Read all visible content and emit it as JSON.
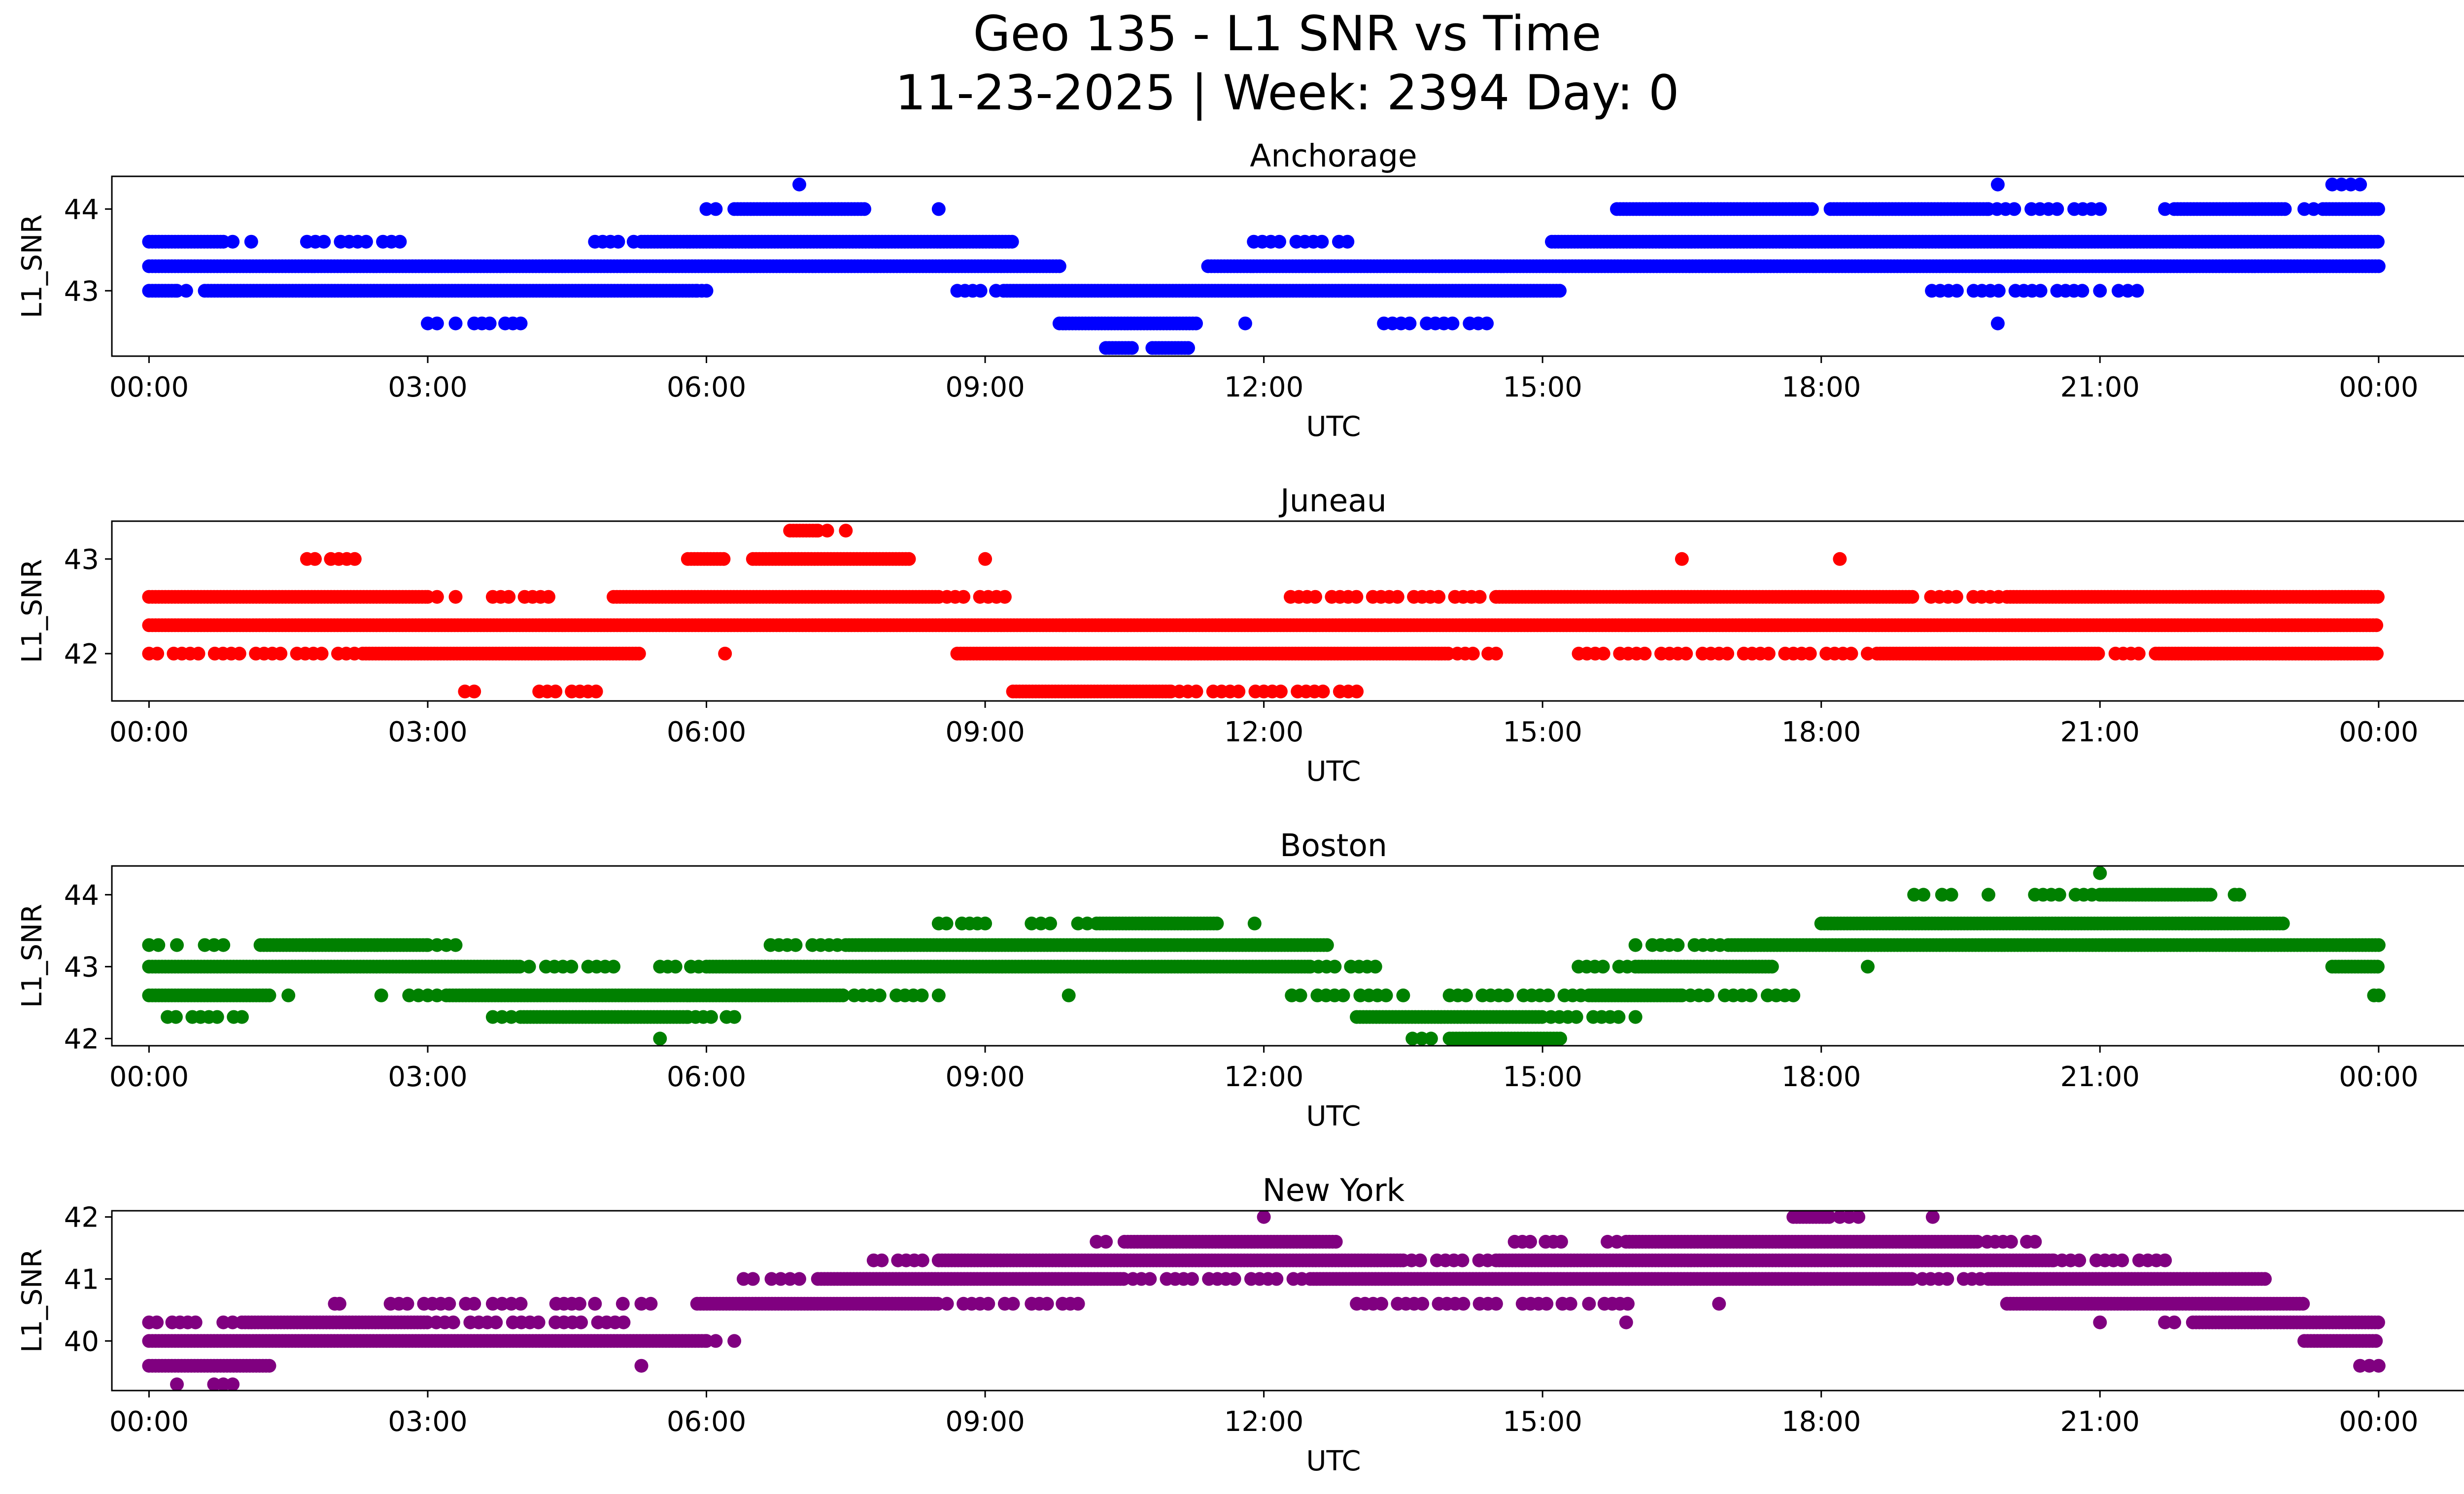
{
  "figure": {
    "title_line1": "Geo 135 - L1 SNR vs Time",
    "title_line2": "11-23-2025 | Week: 2394 Day: 0"
  },
  "chart_data": [
    {
      "type": "scatter",
      "title": "Anchorage",
      "xlabel": "UTC",
      "ylabel": "L1_SNR",
      "color": "#0000ff",
      "xlim_hours": [
        -0.4,
        25.9
      ],
      "ylim": [
        42.2,
        44.4
      ],
      "yticks": [
        43,
        44
      ],
      "xtick_labels": [
        "00:00",
        "03:00",
        "06:00",
        "09:00",
        "12:00",
        "15:00",
        "18:00",
        "21:00",
        "00:00"
      ],
      "bands": [
        {
          "y": 43.3,
          "ranges": [
            [
              0.0,
              9.8
            ],
            [
              11.4,
              24.0
            ]
          ],
          "gaps": [
            [
              9.8,
              11.4
            ]
          ],
          "jitter": 0.0
        },
        {
          "y": 43.0,
          "ranges": [
            [
              0.0,
              0.3
            ],
            [
              0.6,
              5.9
            ],
            [
              9.2,
              15.2
            ]
          ],
          "sparse": [
            [
              0.3,
              0.6
            ],
            [
              5.9,
              6.0
            ],
            [
              8.7,
              9.2
            ],
            [
              19.1,
              20.9
            ],
            [
              21.0,
              21.4
            ]
          ],
          "jitter": 0.0
        },
        {
          "y": 43.6,
          "ranges": [
            [
              0.0,
              0.8
            ],
            [
              5.3,
              9.3
            ],
            [
              15.1,
              24.0
            ]
          ],
          "sparse": [
            [
              0.8,
              1.1
            ],
            [
              1.7,
              2.7
            ],
            [
              4.8,
              5.3
            ],
            [
              11.8,
              12.9
            ]
          ],
          "jitter": 0.0
        },
        {
          "y": 44.0,
          "ranges": [
            [
              6.3,
              7.7
            ],
            [
              15.8,
              17.9
            ],
            [
              18.1,
              19.8
            ],
            [
              21.8,
              23.0
            ],
            [
              23.4,
              24.0
            ]
          ],
          "sparse": [
            [
              6.0,
              6.3
            ],
            [
              8.5,
              8.5
            ],
            [
              19.8,
              21.0
            ],
            [
              21.6,
              21.8
            ],
            [
              23.0,
              23.4
            ]
          ],
          "jitter": 0.0
        },
        {
          "y": 42.6,
          "ranges": [
            [
              9.8,
              11.3
            ]
          ],
          "sparse": [
            [
              3.0,
              3.3
            ],
            [
              3.5,
              4.0
            ],
            [
              11.8,
              11.8
            ],
            [
              13.2,
              14.4
            ],
            [
              19.9,
              19.9
            ]
          ],
          "jitter": 0.0
        },
        {
          "y": 42.3,
          "ranges": [
            [
              10.3,
              10.6
            ],
            [
              10.8,
              11.2
            ]
          ],
          "sparse": [],
          "jitter": 0.0
        },
        {
          "y": 44.3,
          "ranges": [],
          "sparse": [
            [
              7.0,
              7.0
            ],
            [
              19.9,
              19.9
            ],
            [
              23.5,
              23.9
            ]
          ],
          "jitter": 0.0
        }
      ]
    },
    {
      "type": "scatter",
      "title": "Juneau",
      "xlabel": "UTC",
      "ylabel": "L1_SNR",
      "color": "#ff0000",
      "xlim_hours": [
        -0.4,
        25.9
      ],
      "ylim": [
        41.5,
        43.4
      ],
      "yticks": [
        42,
        43
      ],
      "xtick_labels": [
        "00:00",
        "03:00",
        "06:00",
        "09:00",
        "12:00",
        "15:00",
        "18:00",
        "21:00",
        "00:00"
      ],
      "bands": [
        {
          "y": 42.3,
          "ranges": [
            [
              0.0,
              24.0
            ]
          ],
          "sparse": [],
          "jitter": 0.0
        },
        {
          "y": 42.6,
          "ranges": [
            [
              0.0,
              3.0
            ],
            [
              5.0,
              8.5
            ],
            [
              14.5,
              19.0
            ],
            [
              20.0,
              24.0
            ]
          ],
          "sparse": [
            [
              3.0,
              3.3
            ],
            [
              3.7,
              4.3
            ],
            [
              8.5,
              9.3
            ],
            [
              12.2,
              14.5
            ],
            [
              19.0,
              20.0
            ]
          ],
          "jitter": 0.0
        },
        {
          "y": 42.0,
          "ranges": [
            [
              2.3,
              5.3
            ],
            [
              8.7,
              14.0
            ],
            [
              18.6,
              21.0
            ],
            [
              21.6,
              24.0
            ]
          ],
          "sparse": [
            [
              0.0,
              2.3
            ],
            [
              6.2,
              6.2
            ],
            [
              14.0,
              14.5
            ],
            [
              15.3,
              18.5
            ],
            [
              21.0,
              21.5
            ]
          ],
          "jitter": 0.0
        },
        {
          "y": 43.0,
          "ranges": [
            [
              5.8,
              6.2
            ],
            [
              6.5,
              8.2
            ]
          ],
          "sparse": [
            [
              1.7,
              2.3
            ],
            [
              9.0,
              9.0
            ],
            [
              16.5,
              16.5
            ],
            [
              18.2,
              18.2
            ]
          ],
          "jitter": 0.0
        },
        {
          "y": 41.6,
          "ranges": [
            [
              9.3,
              11.0
            ]
          ],
          "sparse": [
            [
              3.4,
              3.6
            ],
            [
              4.2,
              4.9
            ],
            [
              11.0,
              13.0
            ]
          ],
          "jitter": 0.0
        },
        {
          "y": 43.3,
          "ranges": [
            [
              6.9,
              7.2
            ]
          ],
          "sparse": [
            [
              7.2,
              7.5
            ]
          ],
          "jitter": 0.0
        }
      ]
    },
    {
      "type": "scatter",
      "title": "Boston",
      "xlabel": "UTC",
      "ylabel": "L1_SNR",
      "color": "#008000",
      "xlim_hours": [
        -0.4,
        25.9
      ],
      "ylim": [
        41.9,
        44.4
      ],
      "yticks": [
        42,
        43,
        44
      ],
      "xtick_labels": [
        "00:00",
        "03:00",
        "06:00",
        "09:00",
        "12:00",
        "15:00",
        "18:00",
        "21:00",
        "00:00"
      ],
      "bands": [
        {
          "y": 43.0,
          "ranges": [
            [
              0.0,
              4.0
            ],
            [
              6.0,
              12.5
            ],
            [
              16.0,
              17.5
            ],
            [
              23.5,
              24.0
            ]
          ],
          "sparse": [
            [
              4.0,
              5.0
            ],
            [
              5.5,
              6.0
            ],
            [
              12.5,
              13.2
            ],
            [
              15.3,
              16.0
            ],
            [
              18.5,
              18.5
            ]
          ],
          "jitter": 0.0
        },
        {
          "y": 43.3,
          "ranges": [
            [
              1.2,
              3.0
            ],
            [
              7.5,
              12.7
            ],
            [
              17.0,
              24.0
            ]
          ],
          "sparse": [
            [
              0.0,
              0.3
            ],
            [
              0.6,
              0.9
            ],
            [
              3.0,
              3.4
            ],
            [
              6.6,
              7.5
            ],
            [
              16.0,
              17.0
            ]
          ],
          "jitter": 0.0
        },
        {
          "y": 42.6,
          "ranges": [
            [
              0.0,
              1.3
            ],
            [
              3.2,
              6.0
            ],
            [
              6.0,
              7.5
            ],
            [
              15.5,
              16.5
            ]
          ],
          "sparse": [
            [
              1.5,
              1.5
            ],
            [
              2.5,
              2.5
            ],
            [
              2.8,
              3.2
            ],
            [
              7.5,
              8.5
            ],
            [
              9.9,
              9.9
            ],
            [
              12.3,
              13.5
            ],
            [
              14.0,
              15.5
            ],
            [
              16.5,
              17.7
            ],
            [
              23.9,
              24.0
            ]
          ],
          "jitter": 0.0
        },
        {
          "y": 42.3,
          "ranges": [
            [
              4.0,
              5.8
            ],
            [
              13.0,
              15.0
            ]
          ],
          "sparse": [
            [
              0.2,
              1.0
            ],
            [
              3.7,
              4.0
            ],
            [
              5.8,
              6.3
            ],
            [
              15.0,
              16.0
            ]
          ],
          "jitter": 0.0
        },
        {
          "y": 43.6,
          "ranges": [
            [
              10.2,
              11.5
            ],
            [
              18.0,
              23.0
            ]
          ],
          "sparse": [
            [
              8.5,
              9.0
            ],
            [
              9.5,
              9.8
            ],
            [
              10.0,
              10.2
            ],
            [
              11.9,
              11.9
            ]
          ],
          "jitter": 0.0
        },
        {
          "y": 44.0,
          "ranges": [
            [
              21.0,
              22.2
            ]
          ],
          "sparse": [
            [
              19.0,
              19.4
            ],
            [
              19.8,
              19.8
            ],
            [
              20.3,
              21.0
            ],
            [
              22.4,
              22.5
            ]
          ],
          "jitter": 0.0
        },
        {
          "y": 42.0,
          "ranges": [
            [
              14.0,
              15.2
            ]
          ],
          "sparse": [
            [
              5.5,
              5.5
            ],
            [
              13.6,
              14.0
            ]
          ],
          "jitter": 0.0
        },
        {
          "y": 44.3,
          "ranges": [],
          "sparse": [
            [
              21.0,
              21.0
            ]
          ],
          "jitter": 0.0
        }
      ]
    },
    {
      "type": "scatter",
      "title": "New York",
      "xlabel": "UTC",
      "ylabel": "L1_SNR",
      "color": "#800080",
      "xlim_hours": [
        -0.4,
        25.9
      ],
      "ylim": [
        39.2,
        42.1
      ],
      "yticks": [
        40,
        41,
        42
      ],
      "xtick_labels": [
        "00:00",
        "03:00",
        "06:00",
        "09:00",
        "12:00",
        "15:00",
        "18:00",
        "21:00",
        "00:00"
      ],
      "bands": [
        {
          "y": 40.0,
          "ranges": [
            [
              0.0,
              6.0
            ],
            [
              23.2,
              24.0
            ]
          ],
          "sparse": [
            [
              6.0,
              6.3
            ]
          ],
          "jitter": 0.0
        },
        {
          "y": 40.3,
          "ranges": [
            [
              1.0,
              3.0
            ],
            [
              22.0,
              24.0
            ]
          ],
          "sparse": [
            [
              0.0,
              0.5
            ],
            [
              0.8,
              1.0
            ],
            [
              3.0,
              5.2
            ],
            [
              15.9,
              15.9
            ],
            [
              21.0,
              21.0
            ],
            [
              21.7,
              22.0
            ]
          ],
          "jitter": 0.0
        },
        {
          "y": 39.6,
          "ranges": [
            [
              0.0,
              1.3
            ]
          ],
          "sparse": [
            [
              5.3,
              5.3
            ],
            [
              23.8,
              24.0
            ]
          ],
          "jitter": 0.0
        },
        {
          "y": 40.6,
          "ranges": [
            [
              5.9,
              8.5
            ],
            [
              20.0,
              23.2
            ]
          ],
          "sparse": [
            [
              2.0,
              2.1
            ],
            [
              2.6,
              3.5
            ],
            [
              3.7,
              4.0
            ],
            [
              4.3,
              4.8
            ],
            [
              5.1,
              5.4
            ],
            [
              8.5,
              9.3
            ],
            [
              9.5,
              10.0
            ],
            [
              13.0,
              14.5
            ],
            [
              14.7,
              15.3
            ],
            [
              15.5,
              16.0
            ],
            [
              16.9,
              16.9
            ]
          ],
          "jitter": 0.0
        },
        {
          "y": 41.0,
          "ranges": [
            [
              7.2,
              10.5
            ],
            [
              12.5,
              19.0
            ],
            [
              19.8,
              22.8
            ]
          ],
          "sparse": [
            [
              6.4,
              6.7
            ],
            [
              6.8,
              7.2
            ],
            [
              10.5,
              12.5
            ],
            [
              19.0,
              19.8
            ]
          ],
          "jitter": 0.0
        },
        {
          "y": 41.3,
          "ranges": [
            [
              8.5,
              13.5
            ],
            [
              14.5,
              20.5
            ]
          ],
          "sparse": [
            [
              7.8,
              8.5
            ],
            [
              13.5,
              14.5
            ],
            [
              20.5,
              21.7
            ]
          ],
          "jitter": 0.0
        },
        {
          "y": 41.6,
          "ranges": [
            [
              10.5,
              12.8
            ],
            [
              15.9,
              19.7
            ]
          ],
          "sparse": [
            [
              10.2,
              10.5
            ],
            [
              14.7,
              15.2
            ],
            [
              15.7,
              15.9
            ],
            [
              19.7,
              20.3
            ]
          ],
          "jitter": 0.0
        },
        {
          "y": 42.0,
          "ranges": [
            [
              17.7,
              18.1
            ]
          ],
          "sparse": [
            [
              12.0,
              12.0
            ],
            [
              18.2,
              18.4
            ],
            [
              19.2,
              19.2
            ]
          ],
          "jitter": 0.0
        },
        {
          "y": 39.3,
          "ranges": [],
          "sparse": [
            [
              0.3,
              0.3
            ],
            [
              0.7,
              0.9
            ]
          ],
          "jitter": 0.0
        }
      ]
    }
  ]
}
